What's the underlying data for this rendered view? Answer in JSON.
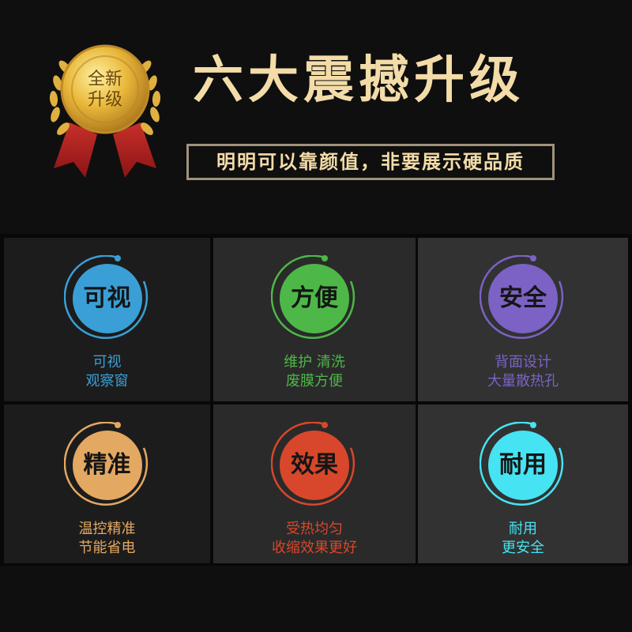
{
  "medal": {
    "text_line1": "全新",
    "text_line2": "升级"
  },
  "header": {
    "title": "六大震撼升级",
    "subtitle": "明明可以靠颜值，非要展示硬品质"
  },
  "features": [
    {
      "badge": "可视",
      "line1": "可视",
      "line2": "观察窗",
      "color": "#3a9fd6"
    },
    {
      "badge": "方便",
      "line1": "维护 清洗",
      "line2": "废膜方便",
      "color": "#4db848"
    },
    {
      "badge": "安全",
      "line1": "背面设计",
      "line2": "大量散热孔",
      "color": "#7b62c4"
    },
    {
      "badge": "精准",
      "line1": "温控精准",
      "line2": "节能省电",
      "color": "#e3a862"
    },
    {
      "badge": "效果",
      "line1": "受热均匀",
      "line2": "收缩效果更好",
      "color": "#d8472b"
    },
    {
      "badge": "耐用",
      "line1": "耐用",
      "line2": "更安全",
      "color": "#46e3f2"
    }
  ]
}
